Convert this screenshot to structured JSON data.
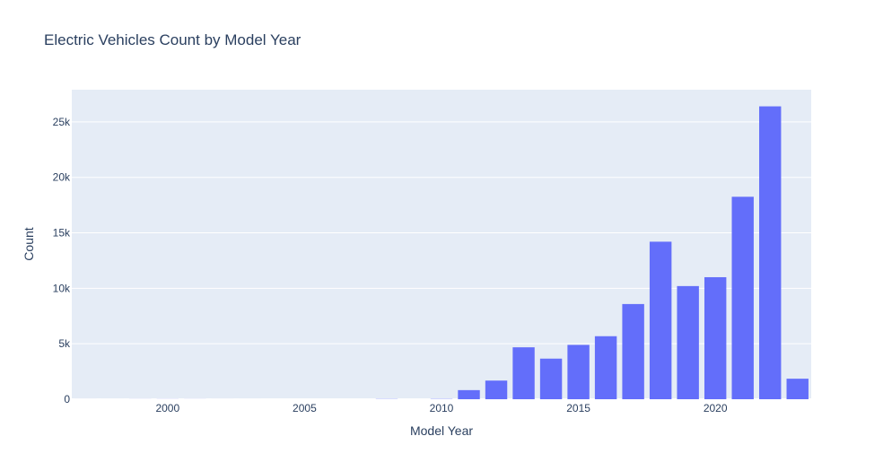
{
  "chart_data": {
    "type": "bar",
    "title": "Electric Vehicles Count by Model Year",
    "xlabel": "Model Year",
    "ylabel": "Count",
    "x": [
      1997,
      1998,
      1999,
      2000,
      2001,
      2002,
      2003,
      2008,
      2010,
      2011,
      2012,
      2013,
      2014,
      2015,
      2016,
      2017,
      2018,
      2019,
      2020,
      2021,
      2022,
      2023
    ],
    "values": [
      2,
      1,
      5,
      8,
      5,
      2,
      1,
      19,
      23,
      820,
      1680,
      4680,
      3660,
      4900,
      5680,
      8580,
      14200,
      10200,
      11000,
      18250,
      26400,
      1850
    ],
    "xlim": [
      1996.5,
      2023.5
    ],
    "ylim": [
      0,
      27900
    ],
    "x_ticks": [
      2000,
      2005,
      2010,
      2015,
      2020
    ],
    "x_tick_labels": [
      "2000",
      "2005",
      "2010",
      "2015",
      "2020"
    ],
    "y_ticks": [
      0,
      5000,
      10000,
      15000,
      20000,
      25000
    ],
    "y_tick_labels": [
      "0",
      "5k",
      "10k",
      "15k",
      "20k",
      "25k"
    ],
    "grid": true,
    "legend": "none",
    "colors": {
      "bar": "#636efa",
      "plot_bg": "#e5ecf6",
      "grid": "#ffffff",
      "text": "#2a3f5f"
    }
  }
}
